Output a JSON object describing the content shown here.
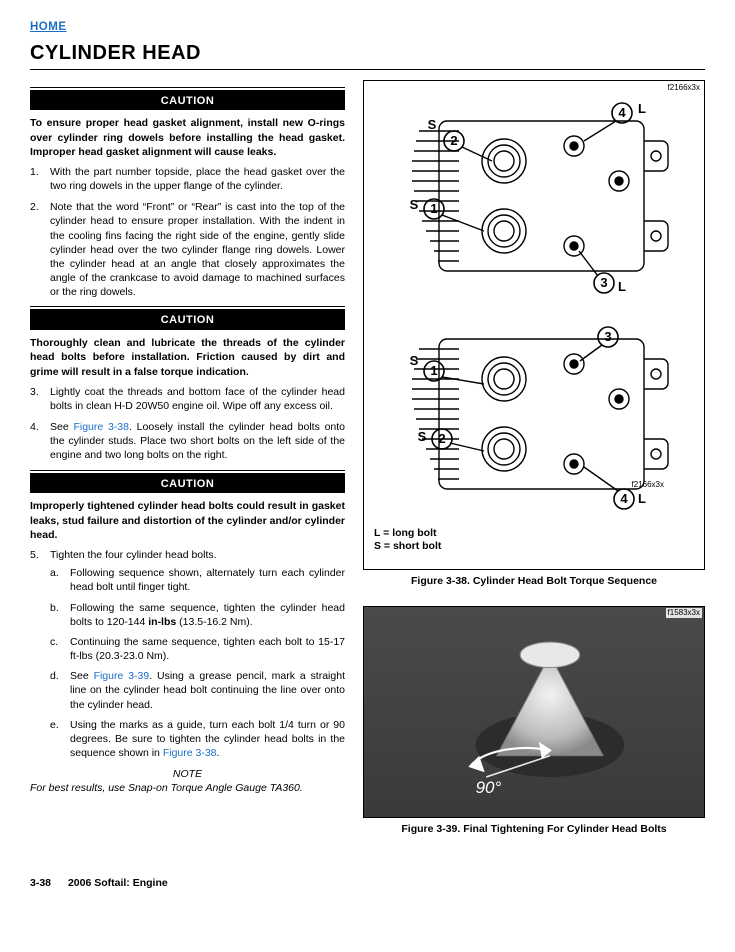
{
  "nav": {
    "home": "HOME"
  },
  "title": "CYLINDER HEAD",
  "caution_label": "CAUTION",
  "caution1": "To ensure proper head gasket alignment, install new O-rings over cylinder ring dowels before installing the head gasket. Improper head gasket alignment will cause leaks.",
  "step1": "With the part number topside, place the head gasket over the two ring dowels in the upper flange of the cylinder.",
  "step2": "Note that the word “Front” or “Rear” is cast into the top of the cylinder head to ensure proper installation. With the indent in the cooling fins facing the right side of the engine, gently slide cylinder head over the two cylinder flange ring dowels. Lower the cylinder head at an angle that closely approximates the angle of the crankcase to avoid damage to machined surfaces or the ring dowels.",
  "caution2": "Thoroughly clean and lubricate the threads of the cylinder head bolts before installation. Friction caused by dirt and grime will result in a false torque indication.",
  "step3": "Lightly coat the threads and bottom face of the cylinder head bolts in clean H-D 20W50 engine oil. Wipe off any excess oil.",
  "step4_pre": "See ",
  "step4_ref": "Figure 3-38",
  "step4_post": ". Loosely install the cylinder head bolts onto the cylinder studs. Place two short bolts on the left side of the engine and two long bolts on the right.",
  "caution3": "Improperly tightened cylinder head bolts could result in gasket leaks, stud failure and distortion of the cylinder and/or cylinder head.",
  "step5": "Tighten the four cylinder head bolts.",
  "s5a": "Following sequence shown, alternately turn each cylinder head bolt until finger tight.",
  "s5b": "Following the same sequence, tighten the cylinder head bolts to 120-144 in-lbs (13.5-16.2 Nm).",
  "s5c": "Continuing the same sequence, tighten each bolt to 15-17 ft-lbs (20.3-23.0 Nm).",
  "s5d_pre": "See ",
  "s5d_ref": "Figure 3-39",
  "s5d_post": ". Using a grease pencil, mark a straight line on the cylinder head bolt continuing the line over onto the cylinder head.",
  "s5e_pre": "Using the marks as a guide, turn each bolt 1/4 turn or 90 degrees. Be sure to tighten the cylinder head bolts in the sequence shown in ",
  "s5e_ref": "Figure 3-38",
  "s5e_post": ".",
  "note_head": "NOTE",
  "note_body": "For best results, use Snap-on Torque Angle Gauge TA360.",
  "fig1": {
    "ref": "f2166x3x",
    "legend_l": "L = long bolt",
    "legend_s": "S = short bolt",
    "caption": "Figure 3-38. Cylinder Head Bolt Torque Sequence",
    "labels": {
      "S": "S",
      "L": "L",
      "n1": "1",
      "n2": "2",
      "n3": "3",
      "n4": "4"
    }
  },
  "fig2": {
    "ref": "f1583x3x",
    "caption": "Figure 3-39. Final Tightening For Cylinder Head Bolts",
    "angle": "90°"
  },
  "footer": {
    "page": "3-38",
    "section": "2006 Softail: Engine"
  },
  "colors": {
    "link": "#1a6ec8",
    "text": "#000000",
    "bg": "#ffffff",
    "photo_bg": "#4a4a4a",
    "photo_metal": "#d9d9d9"
  }
}
